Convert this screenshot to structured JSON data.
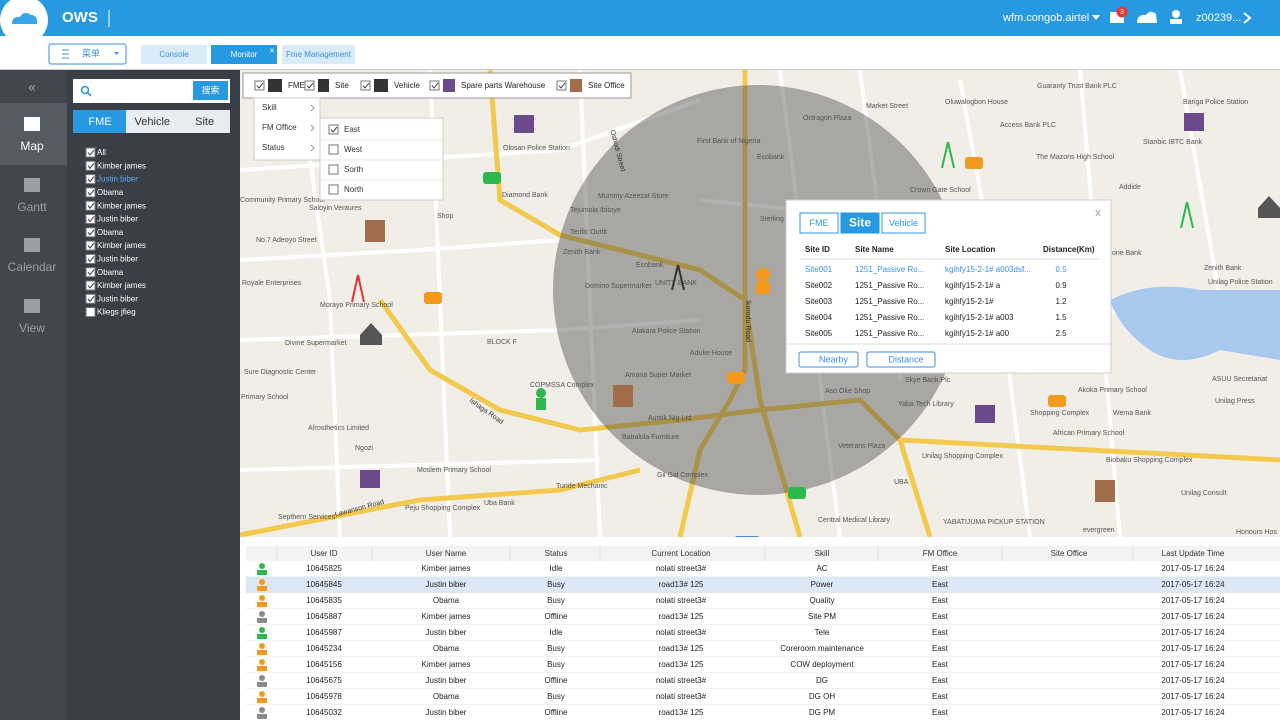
{
  "header": {
    "logo": "OWS",
    "user_domain": "wfm.congob.airtel",
    "badge": "3",
    "user_id": "z00239..."
  },
  "tabs": {
    "menu": "菜单",
    "items": [
      "Console",
      "Monitor",
      "Fme Management"
    ],
    "close": "×"
  },
  "sidebar": {
    "items": [
      "Map",
      "Gantt",
      "Calendar",
      "View"
    ]
  },
  "panel": {
    "search_button": "搜索",
    "tabs": [
      "FME",
      "Vehicle",
      "Site"
    ],
    "list": [
      "All",
      "Kimber james",
      "Justin biber",
      "Obama",
      "Kimber james",
      "Justin biber",
      "Obama",
      "Kimber james",
      "Justin biber",
      "Obama",
      "Kimber james",
      "Justin biber",
      "Kliegs jfieg"
    ]
  },
  "filter": {
    "items": [
      "FME",
      "Site",
      "Vehicle",
      "Spare parts Warehouse",
      "Site Office"
    ]
  },
  "dropdown": {
    "items": [
      "Skill",
      "FM Office",
      "Status"
    ],
    "submenu": [
      "East",
      "West",
      "Sorth",
      "North"
    ]
  },
  "map": {
    "labels": [
      "Olosan Police Station",
      "Diamond Bank",
      "Community Primary School",
      "Saloyin Ventures",
      "Shop",
      "No.7 Adeoyo Street",
      "Tejumola Ibitoye",
      "Mummy Azeezat Store",
      "Terific Outfit",
      "Zenith Bank",
      "Ecobank",
      "UNITY BANK",
      "Domino Supermarket",
      "Royale Enterprises",
      "Morayo Primary School",
      "Divine Supermarket",
      "BLOCK F",
      "Alakara Police Station",
      "Aduke House",
      "Octragon Plaza",
      "First Bank of Nigeria",
      "Ecobank",
      "Sterling",
      "Crown Gate School",
      "Market Street",
      "Oluwalogbon House",
      "Guaranty Trust Bank PLC",
      "Access Bank PLC",
      "The Mazons High School",
      "Stanbic IBTC Bank",
      "Bariga Police Station",
      "Addide",
      "Sure Diagnostic Center",
      "Primary School",
      "Ishaga Road",
      "COPMSSA Complex",
      "Amana Super Market",
      "Austik Nig Ltd",
      "Babalola Furniture",
      "Afrosthetics Limited",
      "Ngozi",
      "Moslem Primary School",
      "Gil Gal Complex",
      "Tunde Mechanic",
      "Uba Bank",
      "Peju Shopping Complex",
      "Lawanson Road",
      "Septhern Services",
      "Aso Oke Shop",
      "Skye Bank Plc",
      "Yaba Tech Library",
      "Veterans Plaza",
      "Unilag Shopping Complex",
      "UBA",
      "YABATIJUMA PICKUP STATION",
      "Central Medical Library",
      "Akoka Primary School",
      "ASUU Secretariat",
      "Unilag Press",
      "Wema Bank",
      "Shopping Complex",
      "African Primary School",
      "Biobaku Shopping Complex",
      "Unilag Consult",
      "evergreen",
      "Honours Hos",
      "Unilag Police Station",
      "Zenith Bank",
      "one Bank",
      "Ikorodu Road",
      "Oshodi Street"
    ]
  },
  "popup": {
    "tabs": [
      "FME",
      "Site",
      "Vehicle"
    ],
    "close": "x",
    "headers": [
      "Site ID",
      "Site Name",
      "Site Location",
      "Distance(Km)"
    ],
    "rows": [
      [
        "Site001",
        "1251_Passive Ro...",
        "kgihfy15-2-1# a003dsf...",
        "0.5"
      ],
      [
        "Site002",
        "1251_Passive Ro...",
        "kgihfy15-2-1# a",
        "0.9"
      ],
      [
        "Site003",
        "1251_Passive Ro...",
        "kgihfy15-2-1#",
        "1.2"
      ],
      [
        "Site004",
        "1251_Passive Ro...",
        "kgihfy15-2-1# a003",
        "1.5"
      ],
      [
        "Site005",
        "1251_Passive Ro...",
        "kgihfy15-2-1# a00",
        "2.5"
      ]
    ],
    "buttons": [
      "Nearby",
      "Distance"
    ]
  },
  "table": {
    "headers": [
      "User ID",
      "User Name",
      "Status",
      "Current Location",
      "Skill",
      "FM Office",
      "Site Office",
      "Last Update Time"
    ],
    "rows": [
      {
        "icon_color": "#2db84d",
        "cells": [
          "10645825",
          "Kimber james",
          "Idle",
          "nolati street3#",
          "AC",
          "East",
          "",
          "2017-05-17 16:24"
        ]
      },
      {
        "icon_color": "#f39a1e",
        "cells": [
          "10645845",
          "Justin biber",
          "Busy",
          "road13# 125",
          "Power",
          "East",
          "",
          "2017-05-17 16:24"
        ]
      },
      {
        "icon_color": "#f39a1e",
        "cells": [
          "10645835",
          "Obama",
          "Busy",
          "nolati street3#",
          "Quality",
          "East",
          "",
          "2017-05-17 16:24"
        ]
      },
      {
        "icon_color": "#8a8a8a",
        "cells": [
          "10645887",
          "Kimber james",
          "Offline",
          "road13# 125",
          "Site PM",
          "East",
          "",
          "2017-05-17 16:24"
        ]
      },
      {
        "icon_color": "#2db84d",
        "cells": [
          "10645987",
          "Justin biber",
          "Idle",
          "nolati street3#",
          "Tele",
          "East",
          "",
          "2017-05-17 16:24"
        ]
      },
      {
        "icon_color": "#f39a1e",
        "cells": [
          "10645234",
          "Obama",
          "Busy",
          "road13# 125",
          "Coreroom maintenance",
          "East",
          "",
          "2017-05-17 16:24"
        ]
      },
      {
        "icon_color": "#f39a1e",
        "cells": [
          "10645156",
          "Kimber james",
          "Busy",
          "road13# 125",
          "COW deployment",
          "East",
          "",
          "2017-05-17 16:24"
        ]
      },
      {
        "icon_color": "#8a8a8a",
        "cells": [
          "10645675",
          "Justin biber",
          "Offline",
          "nolati street3#",
          "DG",
          "East",
          "",
          "2017-05-17 16:24"
        ]
      },
      {
        "icon_color": "#f39a1e",
        "cells": [
          "10645978",
          "Obama",
          "Busy",
          "nolati street3#",
          "DG OH",
          "East",
          "",
          "2017-05-17 16:24"
        ]
      },
      {
        "icon_color": "#8a8a8a",
        "cells": [
          "10645032",
          "Justin biber",
          "Offline",
          "road13# 125",
          "DG PM",
          "East",
          "",
          "2017-05-17 16:24"
        ]
      }
    ]
  }
}
